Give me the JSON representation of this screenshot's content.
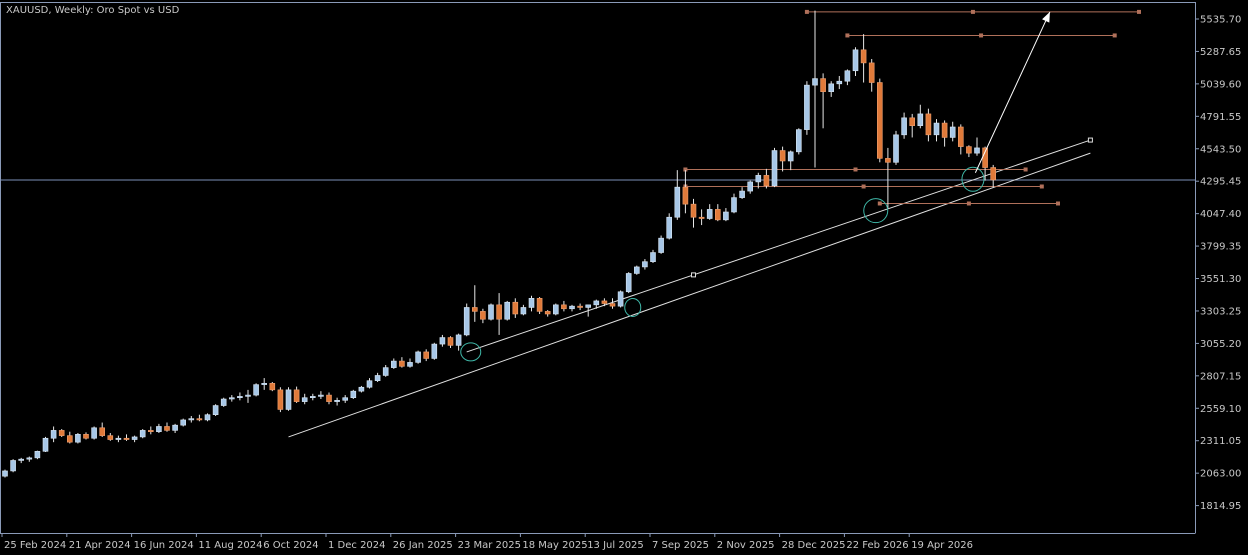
{
  "chart_title": "XAUUSD, Weekly:  Oro Spot vs USD",
  "colors": {
    "background": "#000000",
    "axis": "#8a9ab8",
    "text": "#c8c8c8",
    "bull_fill": "#a7c7e7",
    "bull_outline": "#d8e6f4",
    "bear_fill": "#e07a3a",
    "bear_outline": "#f0a070",
    "trendline": "#e0e0e0",
    "levels": "#b0705a",
    "price_line": "#7c8fb8",
    "circle": "#3fb8a8",
    "arrow": "#ffffff"
  },
  "chart_data": {
    "type": "candlestick",
    "symbol": "XAUUSD",
    "timeframe": "Weekly",
    "description": "Oro Spot vs USD",
    "ylim": [
      1720,
      5660
    ],
    "y_ticks": [
      1814.95,
      2063.0,
      2311.05,
      2559.1,
      2807.15,
      3055.2,
      3303.25,
      3551.3,
      3799.35,
      4047.4,
      4295.45,
      4543.5,
      4791.55,
      5039.6,
      5287.65,
      5535.7
    ],
    "y_tick_labels": [
      "1814.95",
      "2063.00",
      "2311.05",
      "2559.10",
      "2807.15",
      "3055.20",
      "3303.25",
      "3551.30",
      "3799.35",
      "4047.40",
      "4295.45",
      "4543.50",
      "4791.55",
      "5039.60",
      "5287.65",
      "5535.70"
    ],
    "x_tick_labels": [
      "25 Feb 2024",
      "21 Apr 2024",
      "16 Jun 2024",
      "11 Aug 2024",
      "6 Oct 2024",
      "1 Dec 2024",
      "26 Jan 2025",
      "23 Mar 2025",
      "18 May 2025",
      "13 Jul 2025",
      "7 Sep 2025",
      "2 Nov 2025",
      "28 Dec 2025",
      "22 Feb 2026",
      "19 Apr 2026"
    ],
    "x_tick_bar_index": [
      0,
      8,
      16,
      24,
      32,
      40,
      48,
      56,
      64,
      72,
      80,
      88,
      96,
      104,
      112
    ],
    "current_price": 4305,
    "candles": [
      [
        2040,
        2090,
        2030,
        2080
      ],
      [
        2080,
        2170,
        2070,
        2160
      ],
      [
        2160,
        2180,
        2140,
        2170
      ],
      [
        2170,
        2190,
        2150,
        2180
      ],
      [
        2180,
        2235,
        2170,
        2230
      ],
      [
        2230,
        2340,
        2225,
        2330
      ],
      [
        2330,
        2420,
        2300,
        2390
      ],
      [
        2390,
        2400,
        2340,
        2350
      ],
      [
        2350,
        2380,
        2290,
        2300
      ],
      [
        2300,
        2370,
        2290,
        2360
      ],
      [
        2360,
        2375,
        2320,
        2330
      ],
      [
        2330,
        2420,
        2320,
        2410
      ],
      [
        2410,
        2450,
        2340,
        2350
      ],
      [
        2350,
        2370,
        2310,
        2320
      ],
      [
        2320,
        2350,
        2300,
        2330
      ],
      [
        2330,
        2360,
        2310,
        2320
      ],
      [
        2320,
        2350,
        2300,
        2340
      ],
      [
        2340,
        2400,
        2330,
        2390
      ],
      [
        2390,
        2420,
        2360,
        2380
      ],
      [
        2380,
        2440,
        2370,
        2420
      ],
      [
        2420,
        2450,
        2380,
        2390
      ],
      [
        2390,
        2440,
        2370,
        2430
      ],
      [
        2430,
        2480,
        2420,
        2470
      ],
      [
        2470,
        2500,
        2450,
        2480
      ],
      [
        2480,
        2510,
        2460,
        2470
      ],
      [
        2470,
        2520,
        2460,
        2510
      ],
      [
        2510,
        2590,
        2500,
        2580
      ],
      [
        2580,
        2640,
        2570,
        2630
      ],
      [
        2630,
        2660,
        2610,
        2640
      ],
      [
        2640,
        2680,
        2620,
        2650
      ],
      [
        2650,
        2700,
        2600,
        2660
      ],
      [
        2660,
        2750,
        2650,
        2740
      ],
      [
        2740,
        2790,
        2700,
        2750
      ],
      [
        2750,
        2760,
        2690,
        2700
      ],
      [
        2700,
        2720,
        2530,
        2550
      ],
      [
        2550,
        2720,
        2540,
        2700
      ],
      [
        2700,
        2725,
        2600,
        2610
      ],
      [
        2610,
        2670,
        2590,
        2640
      ],
      [
        2640,
        2670,
        2620,
        2650
      ],
      [
        2650,
        2690,
        2630,
        2660
      ],
      [
        2660,
        2680,
        2590,
        2610
      ],
      [
        2610,
        2640,
        2580,
        2620
      ],
      [
        2620,
        2660,
        2600,
        2640
      ],
      [
        2640,
        2700,
        2630,
        2690
      ],
      [
        2690,
        2730,
        2680,
        2720
      ],
      [
        2720,
        2790,
        2710,
        2770
      ],
      [
        2770,
        2830,
        2760,
        2810
      ],
      [
        2810,
        2890,
        2800,
        2870
      ],
      [
        2870,
        2940,
        2860,
        2920
      ],
      [
        2920,
        2950,
        2870,
        2880
      ],
      [
        2880,
        2940,
        2870,
        2910
      ],
      [
        2910,
        3000,
        2900,
        2990
      ],
      [
        2990,
        3010,
        2920,
        2940
      ],
      [
        2940,
        3060,
        2930,
        3050
      ],
      [
        3050,
        3120,
        3030,
        3100
      ],
      [
        3100,
        3110,
        3020,
        3040
      ],
      [
        3040,
        3130,
        3000,
        3120
      ],
      [
        3120,
        3360,
        3110,
        3330
      ],
      [
        3330,
        3500,
        3220,
        3300
      ],
      [
        3300,
        3320,
        3210,
        3240
      ],
      [
        3240,
        3360,
        3230,
        3350
      ],
      [
        3350,
        3440,
        3120,
        3240
      ],
      [
        3240,
        3380,
        3230,
        3370
      ],
      [
        3370,
        3400,
        3250,
        3280
      ],
      [
        3280,
        3350,
        3270,
        3330
      ],
      [
        3330,
        3420,
        3300,
        3400
      ],
      [
        3400,
        3410,
        3280,
        3300
      ],
      [
        3300,
        3310,
        3260,
        3280
      ],
      [
        3280,
        3360,
        3270,
        3350
      ],
      [
        3350,
        3380,
        3300,
        3320
      ],
      [
        3320,
        3350,
        3300,
        3340
      ],
      [
        3340,
        3360,
        3310,
        3330
      ],
      [
        3330,
        3350,
        3260,
        3350
      ],
      [
        3350,
        3390,
        3320,
        3380
      ],
      [
        3380,
        3400,
        3340,
        3360
      ],
      [
        3360,
        3400,
        3320,
        3340
      ],
      [
        3340,
        3460,
        3330,
        3450
      ],
      [
        3450,
        3600,
        3440,
        3590
      ],
      [
        3590,
        3650,
        3580,
        3640
      ],
      [
        3640,
        3700,
        3620,
        3680
      ],
      [
        3680,
        3770,
        3670,
        3750
      ],
      [
        3750,
        3880,
        3740,
        3860
      ],
      [
        3860,
        4050,
        3850,
        4020
      ],
      [
        4020,
        4380,
        4000,
        4250
      ],
      [
        4250,
        4380,
        4050,
        4120
      ],
      [
        4120,
        4160,
        3940,
        4020
      ],
      [
        4020,
        4080,
        3960,
        4010
      ],
      [
        4010,
        4120,
        4000,
        4080
      ],
      [
        4080,
        4120,
        3990,
        4000
      ],
      [
        4000,
        4090,
        3990,
        4060
      ],
      [
        4060,
        4200,
        4050,
        4170
      ],
      [
        4170,
        4250,
        4160,
        4220
      ],
      [
        4220,
        4300,
        4200,
        4290
      ],
      [
        4290,
        4360,
        4240,
        4340
      ],
      [
        4340,
        4390,
        4240,
        4260
      ],
      [
        4260,
        4550,
        4250,
        4530
      ],
      [
        4530,
        4560,
        4370,
        4450
      ],
      [
        4450,
        4530,
        4380,
        4520
      ],
      [
        4520,
        4700,
        4500,
        4690
      ],
      [
        4690,
        5060,
        4650,
        5030
      ],
      [
        5030,
        5600,
        4400,
        5080
      ],
      [
        5080,
        5120,
        4700,
        4980
      ],
      [
        4980,
        5060,
        4940,
        5040
      ],
      [
        5040,
        5100,
        5000,
        5060
      ],
      [
        5060,
        5150,
        5030,
        5140
      ],
      [
        5140,
        5320,
        5100,
        5300
      ],
      [
        5300,
        5420,
        5050,
        5200
      ],
      [
        5200,
        5230,
        4980,
        5050
      ],
      [
        5050,
        5080,
        4440,
        4470
      ],
      [
        4470,
        4550,
        4090,
        4440
      ],
      [
        4440,
        4680,
        4420,
        4650
      ],
      [
        4650,
        4820,
        4620,
        4780
      ],
      [
        4780,
        4810,
        4630,
        4720
      ],
      [
        4720,
        4880,
        4700,
        4810
      ],
      [
        4810,
        4850,
        4600,
        4650
      ],
      [
        4650,
        4770,
        4600,
        4740
      ],
      [
        4740,
        4760,
        4560,
        4630
      ],
      [
        4630,
        4750,
        4600,
        4710
      ],
      [
        4710,
        4730,
        4500,
        4560
      ],
      [
        4560,
        4570,
        4480,
        4510
      ],
      [
        4510,
        4630,
        4490,
        4550
      ],
      [
        4550,
        4560,
        4300,
        4400
      ],
      [
        4400,
        4420,
        4250,
        4305
      ]
    ],
    "annotations": {
      "trendlines": [
        {
          "from": [
            35,
            2340
          ],
          "to": [
            134,
            4510
          ]
        },
        {
          "from": [
            57,
            2990
          ],
          "to": [
            134,
            4610
          ]
        }
      ],
      "horizontal_levels": [
        {
          "from_bar": 99,
          "to_bar": 140,
          "price": 5590
        },
        {
          "from_bar": 104,
          "to_bar": 137,
          "price": 5410
        },
        {
          "from_bar": 84,
          "to_bar": 126,
          "price": 4385
        },
        {
          "from_bar": 84,
          "to_bar": 128,
          "price": 4255
        },
        {
          "from_bar": 108,
          "to_bar": 130,
          "price": 4125
        }
      ],
      "circles": [
        {
          "bar": 57.5,
          "price": 2990,
          "rx": 10,
          "ry": 9
        },
        {
          "bar": 77.5,
          "price": 3330,
          "rx": 8,
          "ry": 9
        },
        {
          "bar": 107.5,
          "price": 4070,
          "rx": 12,
          "ry": 12
        },
        {
          "bar": 119.5,
          "price": 4310,
          "rx": 11,
          "ry": 12
        }
      ],
      "arrow": {
        "from": [
          119.8,
          4360
        ],
        "to": [
          129,
          5590
        ]
      }
    }
  }
}
